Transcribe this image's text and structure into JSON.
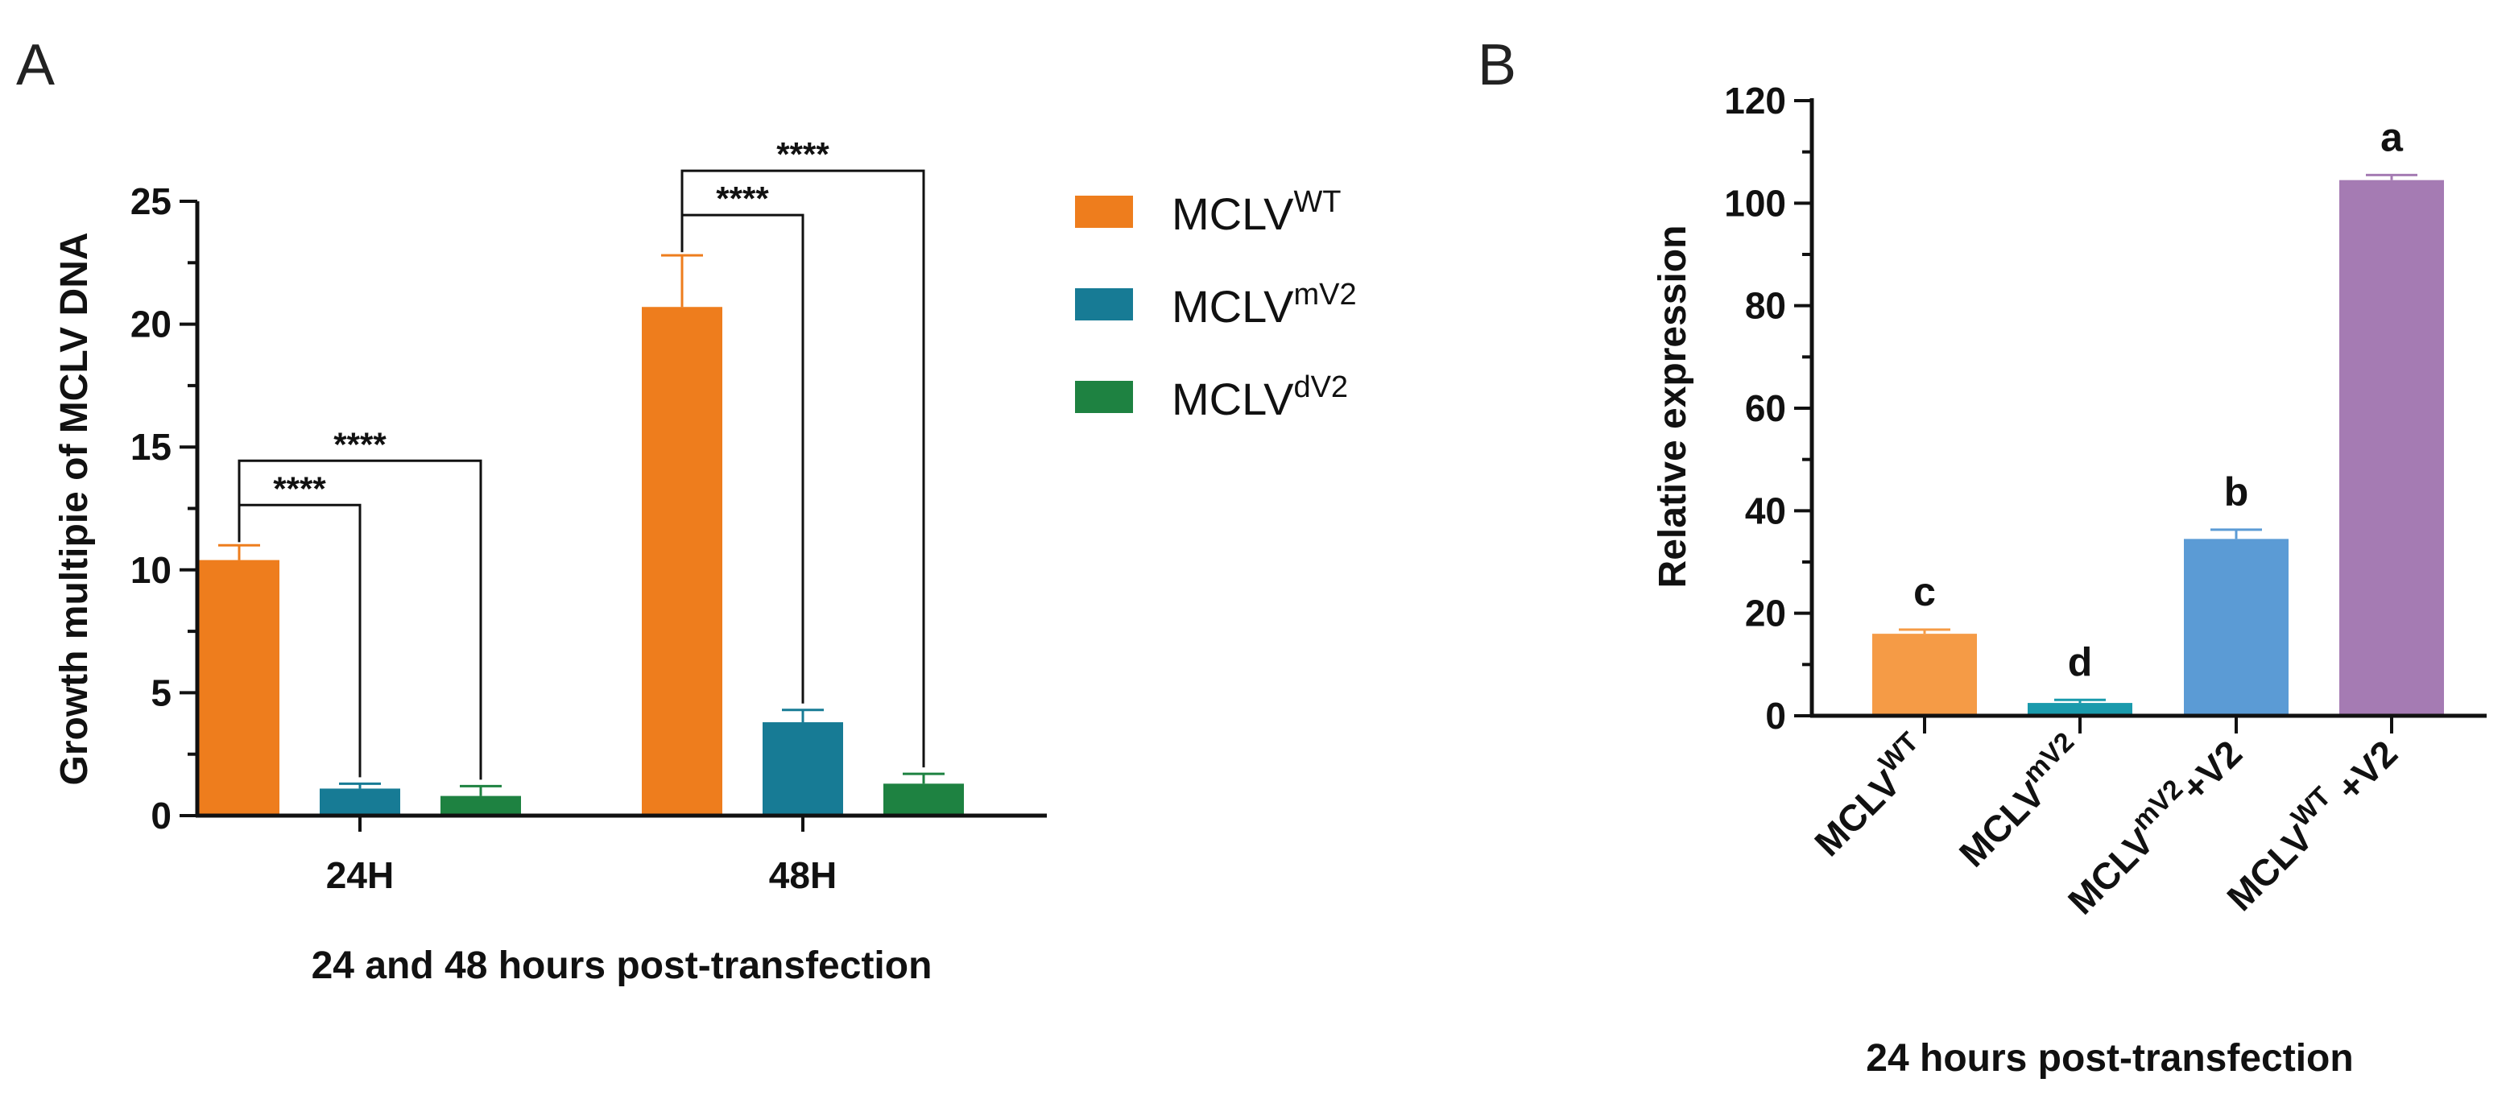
{
  "chart_data": [
    {
      "panel": "A",
      "type": "bar",
      "ylabel": "Growth multipie of MCLV DNA",
      "xlabel": "24 and 48 hours post-transfection",
      "ylim": [
        0,
        25
      ],
      "yticks": [
        "0",
        "5",
        "10",
        "15",
        "20",
        "25"
      ],
      "categories": [
        "24H",
        "48H"
      ],
      "series": [
        {
          "name": "MCLV",
          "sup": "WT",
          "color": "#ee7d1d",
          "values": [
            10.4,
            20.7
          ],
          "errors": [
            0.6,
            2.1
          ]
        },
        {
          "name": "MCLV",
          "sup": "mV2",
          "color": "#177b95",
          "values": [
            1.1,
            3.8
          ],
          "errors": [
            0.2,
            0.5
          ]
        },
        {
          "name": "MCLV",
          "sup": "dV2",
          "color": "#1e8241",
          "values": [
            0.8,
            1.3
          ],
          "errors": [
            0.4,
            0.4
          ]
        }
      ],
      "significance": [
        {
          "group": 0,
          "from": 0,
          "to": 1,
          "label": "****"
        },
        {
          "group": 0,
          "from": 0,
          "to": 2,
          "label": "****"
        },
        {
          "group": 1,
          "from": 0,
          "to": 1,
          "label": "****"
        },
        {
          "group": 1,
          "from": 0,
          "to": 2,
          "label": "****"
        }
      ],
      "legend": "right"
    },
    {
      "panel": "B",
      "type": "bar",
      "ylabel": "Relative expression",
      "xlabel": "24 hours post-transfection",
      "ylim": [
        0,
        120
      ],
      "yticks": [
        "0",
        "20",
        "40",
        "60",
        "80",
        "100",
        "120"
      ],
      "categories": [
        {
          "base": "MCLV",
          "sup": "WT",
          "suffix": ""
        },
        {
          "base": "MCLV",
          "sup": "mV2",
          "suffix": ""
        },
        {
          "base": "MCLV",
          "sup": "mV2",
          "suffix": "+V2"
        },
        {
          "base": "MCLV",
          "sup": "WT",
          "suffix": " +V2"
        }
      ],
      "values": [
        16,
        2.5,
        34.5,
        104.5
      ],
      "errors": [
        0.8,
        0.6,
        1.8,
        1.0
      ],
      "colors": [
        "#f59b46",
        "#1a9aac",
        "#5b9bd5",
        "#a57bb3"
      ],
      "letters": [
        "c",
        "d",
        "b",
        "a"
      ]
    }
  ]
}
